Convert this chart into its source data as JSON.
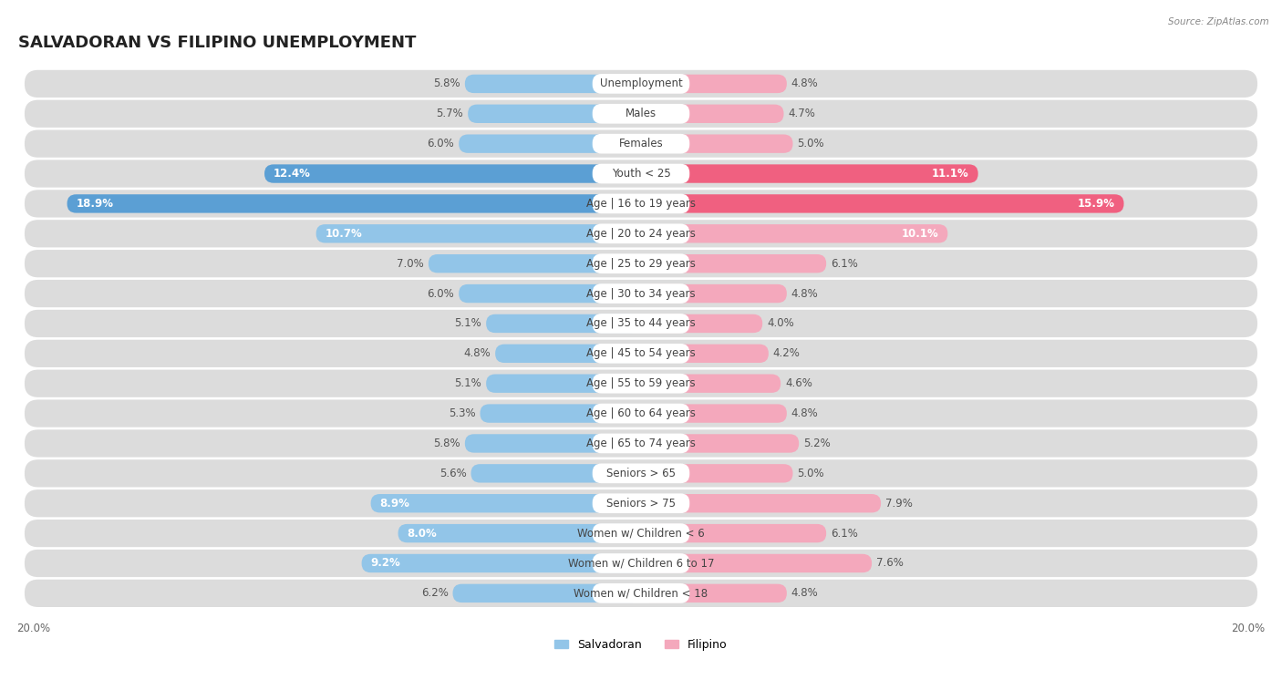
{
  "title": "SALVADORAN VS FILIPINO UNEMPLOYMENT",
  "source": "Source: ZipAtlas.com",
  "categories": [
    "Unemployment",
    "Males",
    "Females",
    "Youth < 25",
    "Age | 16 to 19 years",
    "Age | 20 to 24 years",
    "Age | 25 to 29 years",
    "Age | 30 to 34 years",
    "Age | 35 to 44 years",
    "Age | 45 to 54 years",
    "Age | 55 to 59 years",
    "Age | 60 to 64 years",
    "Age | 65 to 74 years",
    "Seniors > 65",
    "Seniors > 75",
    "Women w/ Children < 6",
    "Women w/ Children 6 to 17",
    "Women w/ Children < 18"
  ],
  "salvadoran": [
    5.8,
    5.7,
    6.0,
    12.4,
    18.9,
    10.7,
    7.0,
    6.0,
    5.1,
    4.8,
    5.1,
    5.3,
    5.8,
    5.6,
    8.9,
    8.0,
    9.2,
    6.2
  ],
  "filipino": [
    4.8,
    4.7,
    5.0,
    11.1,
    15.9,
    10.1,
    6.1,
    4.8,
    4.0,
    4.2,
    4.6,
    4.8,
    5.2,
    5.0,
    7.9,
    6.1,
    7.6,
    4.8
  ],
  "salvadoran_color_normal": "#92C5E8",
  "filipino_color_normal": "#F4A8BC",
  "salvadoran_color_highlight": "#5B9FD4",
  "filipino_color_highlight": "#F06080",
  "row_bg_color": "#E8E8E8",
  "row_pill_bg": "#D8D8D8",
  "label_bg_color": "#FFFFFF",
  "max_value": 20.0,
  "bar_height": 0.62,
  "title_fontsize": 13,
  "value_fontsize": 8.5,
  "cat_fontsize": 8.5,
  "axis_fontsize": 8.5,
  "highlight_rows": [
    3,
    4
  ],
  "large_value_threshold": 8.0
}
